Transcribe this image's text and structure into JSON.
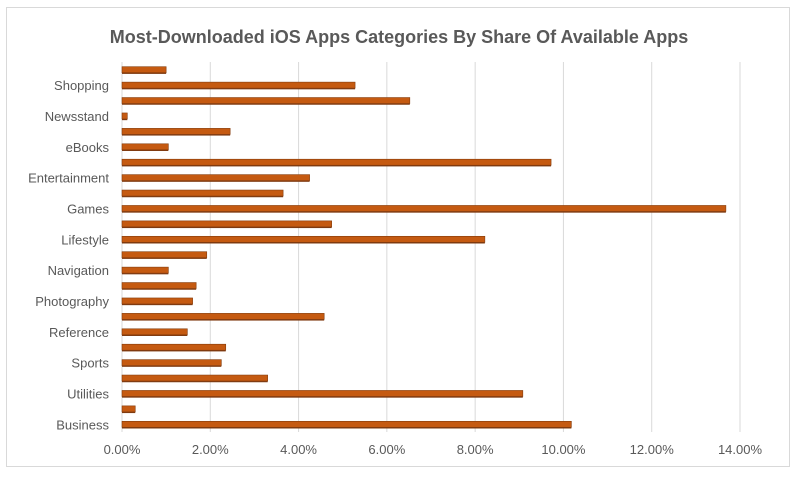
{
  "chart_data": {
    "type": "bar",
    "orientation": "horizontal",
    "title": "Most-Downloaded iOS Apps Categories By Share Of Available Apps",
    "xlabel": "",
    "ylabel": "",
    "xlim": [
      0,
      0.14
    ],
    "x_ticks": [
      "0.00%",
      "2.00%",
      "4.00%",
      "6.00%",
      "8.00%",
      "10.00%",
      "12.00%",
      "14.00%"
    ],
    "grid": "vertical",
    "bar_color": "#c55a11",
    "categories": [
      "",
      "Shopping",
      "",
      "Newsstand",
      "",
      "eBooks",
      "",
      "Entertainment",
      "",
      "Games",
      "",
      "Lifestyle",
      "",
      "Navigation",
      "",
      "Photography",
      "",
      "Reference ",
      "",
      "Sports",
      "",
      "Utilities",
      "",
      "Business"
    ],
    "values": [
      0.01,
      0.0528,
      0.0652,
      0.0012,
      0.0245,
      0.0105,
      0.0972,
      0.0425,
      0.0365,
      0.1368,
      0.0475,
      0.0822,
      0.0192,
      0.0105,
      0.0168,
      0.016,
      0.0458,
      0.0148,
      0.0235,
      0.0225,
      0.033,
      0.0908,
      0.003,
      0.1018
    ]
  }
}
